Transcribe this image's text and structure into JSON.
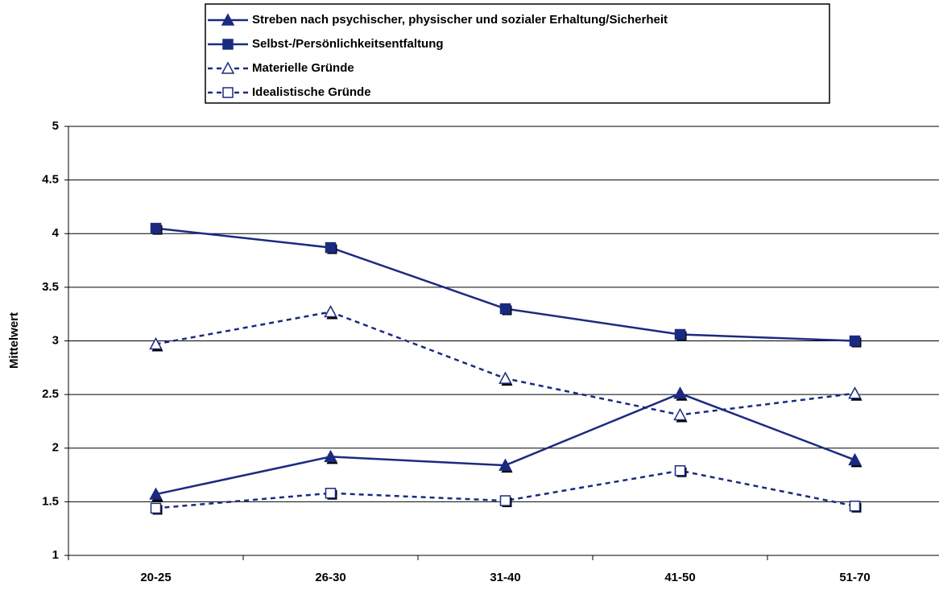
{
  "chart_data": {
    "type": "line",
    "y_label": "Mittelwert",
    "categories": [
      "20-25",
      "26-30",
      "31-40",
      "41-50",
      "51-70"
    ],
    "series": [
      {
        "name": "Streben nach psychischer, physischer und sozialer Erhaltung/Sicherheit",
        "color": "#1b2a80",
        "marker": "triangle",
        "filled": true,
        "dashed": false,
        "values": [
          1.57,
          1.92,
          1.84,
          2.51,
          1.89
        ]
      },
      {
        "name": "Selbst-/Persönlichkeitsentfaltung",
        "color": "#1b2a80",
        "marker": "square",
        "filled": true,
        "dashed": false,
        "values": [
          4.05,
          3.87,
          3.3,
          3.06,
          3.0
        ]
      },
      {
        "name": "Materielle Gründe",
        "color": "#1b2a80",
        "marker": "triangle",
        "filled": false,
        "dashed": true,
        "values": [
          2.97,
          3.27,
          2.65,
          2.31,
          2.51
        ]
      },
      {
        "name": "Idealistische Gründe",
        "color": "#1b2a80",
        "marker": "square",
        "filled": false,
        "dashed": true,
        "values": [
          1.44,
          1.58,
          1.51,
          1.79,
          1.46
        ]
      }
    ],
    "ylim": [
      1,
      5
    ],
    "yticks": [
      1,
      1.5,
      2,
      2.5,
      3,
      3.5,
      4,
      4.5,
      5
    ],
    "grid": true,
    "legend": "top"
  }
}
